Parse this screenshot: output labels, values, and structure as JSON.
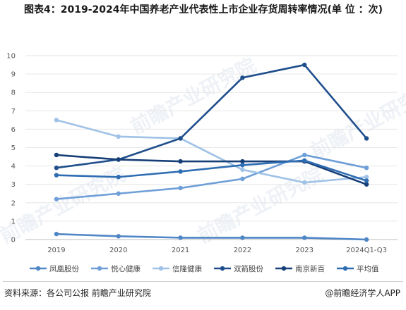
{
  "title": "图表4：2019-2024年中国养老产业代表性上市企业存货周转率情况(单 位 ：次)",
  "source": "资料来源：各公司公报 前瞻产业研究院",
  "brand": "@前瞻经济学人APP",
  "watermark": "前瞻产业研究院",
  "chart_data": {
    "type": "line",
    "categories": [
      "2019",
      "2020",
      "2021",
      "2022",
      "2023",
      "2024Q1-Q3"
    ],
    "ylim": [
      0,
      10
    ],
    "yticks": [
      "0",
      "1",
      "2",
      "3",
      "4",
      "5",
      "6",
      "7",
      "8",
      "9",
      "10"
    ],
    "grid": "horizontal",
    "legend_position": "bottom",
    "series": [
      {
        "name": "凤凰股份",
        "color": "#4f86c6",
        "values": [
          0.3,
          0.18,
          0.1,
          0.1,
          0.1,
          0.0
        ]
      },
      {
        "name": "悦心健康",
        "color": "#6f9fd8",
        "values": [
          2.2,
          2.5,
          2.8,
          3.3,
          4.6,
          3.9
        ]
      },
      {
        "name": "信隆健康",
        "color": "#9fc2e6",
        "values": [
          6.5,
          5.6,
          5.5,
          3.8,
          3.1,
          3.4
        ]
      },
      {
        "name": "双箭股份",
        "color": "#1f4e8c",
        "values": [
          3.9,
          4.35,
          5.5,
          8.8,
          9.5,
          5.5
        ]
      },
      {
        "name": "南京新百",
        "color": "#173f77",
        "values": [
          4.6,
          4.35,
          4.25,
          4.25,
          4.25,
          3.0
        ]
      },
      {
        "name": "平均值",
        "color": "#2f6db3",
        "values": [
          3.5,
          3.4,
          3.7,
          4.05,
          4.3,
          3.2
        ]
      }
    ]
  }
}
